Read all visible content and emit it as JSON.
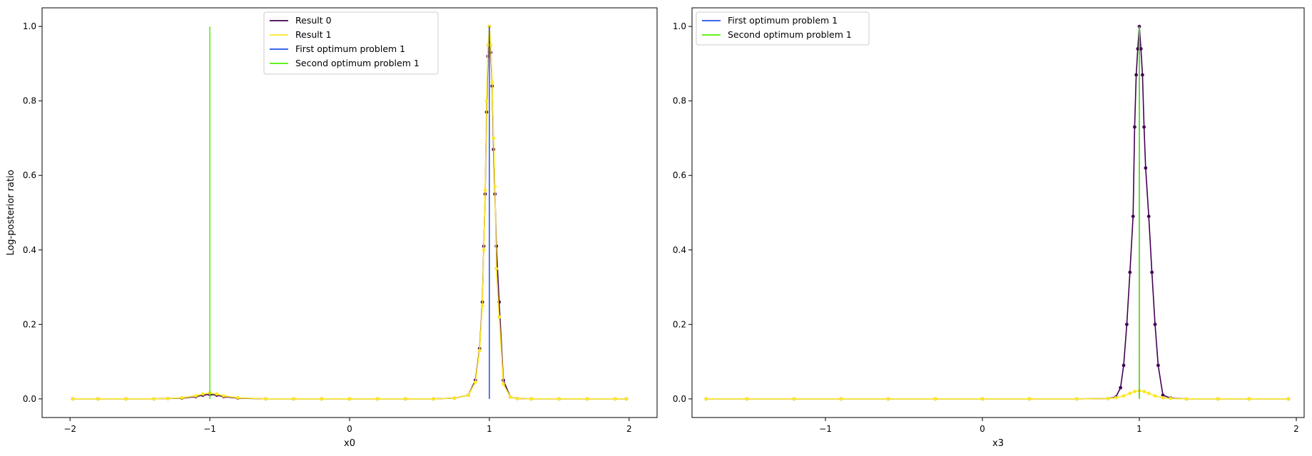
{
  "chart_data": [
    {
      "type": "line",
      "xlabel": "x0",
      "ylabel": "Log-posterior ratio",
      "xlim": [
        -2.2,
        2.2
      ],
      "ylim": [
        -0.05,
        1.05
      ],
      "xticks": [
        -2,
        -1,
        0,
        1,
        2
      ],
      "yticks": [
        0.0,
        0.2,
        0.4,
        0.6,
        0.8,
        1.0
      ],
      "xtick_labels": [
        "−2",
        "−1",
        "0",
        "1",
        "2"
      ],
      "ytick_labels": [
        "0.0",
        "0.2",
        "0.4",
        "0.6",
        "0.8",
        "1.0"
      ],
      "legend_position": "top-center",
      "legend": [
        "Result 0",
        "Result 1",
        "First optimum problem 1",
        "Second optimum problem 1"
      ],
      "grid": false,
      "series": [
        {
          "name": "Result 0",
          "color": "#440154",
          "marker": "dot",
          "x": [
            -1.98,
            -1.8,
            -1.6,
            -1.4,
            -1.3,
            -1.2,
            -1.1,
            -1.05,
            -1.0,
            -0.95,
            -0.9,
            -0.8,
            -0.6,
            -0.4,
            -0.2,
            0.0,
            0.2,
            0.4,
            0.6,
            0.75,
            0.85,
            0.9,
            0.93,
            0.95,
            0.96,
            0.97,
            0.98,
            0.99,
            1.0,
            1.01,
            1.02,
            1.03,
            1.04,
            1.05,
            1.07,
            1.1,
            1.15,
            1.2,
            1.3,
            1.5,
            1.7,
            1.9,
            1.98
          ],
          "y": [
            0.0,
            0.0,
            0.0,
            0.0,
            0.001,
            0.002,
            0.006,
            0.01,
            0.012,
            0.01,
            0.006,
            0.002,
            0.0,
            0.0,
            0.0,
            0.0,
            0.0,
            0.0,
            0.0,
            0.002,
            0.01,
            0.05,
            0.135,
            0.26,
            0.41,
            0.55,
            0.77,
            0.92,
            1.0,
            0.93,
            0.84,
            0.67,
            0.55,
            0.41,
            0.26,
            0.05,
            0.005,
            0.001,
            0.0,
            0.0,
            0.0,
            0.0,
            0.0
          ]
        },
        {
          "name": "Result 1",
          "color": "#fde725",
          "marker": "dot",
          "x": [
            -1.98,
            -1.8,
            -1.6,
            -1.4,
            -1.3,
            -1.2,
            -1.1,
            -1.05,
            -1.0,
            -0.95,
            -0.9,
            -0.8,
            -0.6,
            -0.4,
            -0.2,
            0.0,
            0.2,
            0.4,
            0.6,
            0.75,
            0.85,
            0.9,
            0.93,
            0.95,
            0.96,
            0.97,
            0.98,
            0.99,
            1.0,
            1.01,
            1.02,
            1.03,
            1.04,
            1.05,
            1.07,
            1.1,
            1.15,
            1.2,
            1.3,
            1.5,
            1.7,
            1.9,
            1.98
          ],
          "y": [
            0.0,
            0.0,
            0.0,
            0.0,
            0.001,
            0.003,
            0.008,
            0.013,
            0.016,
            0.013,
            0.008,
            0.003,
            0.0,
            0.0,
            0.0,
            0.0,
            0.0,
            0.0,
            0.0,
            0.002,
            0.01,
            0.045,
            0.13,
            0.25,
            0.4,
            0.56,
            0.8,
            0.95,
            1.0,
            0.95,
            0.85,
            0.7,
            0.57,
            0.35,
            0.22,
            0.04,
            0.005,
            0.001,
            0.0,
            0.0,
            0.0,
            0.0,
            0.0
          ]
        }
      ],
      "vlines": [
        {
          "name": "First optimum problem 1",
          "x": 1.0,
          "ymin": 0.0,
          "ymax": 1.0,
          "color": "#1f50e8"
        },
        {
          "name": "Second optimum problem 1",
          "x": -1.0,
          "ymin": 0.0,
          "ymax": 1.0,
          "color": "#4ef000"
        }
      ]
    },
    {
      "type": "line",
      "xlabel": "x3",
      "ylabel": "",
      "xlim": [
        -1.85,
        2.05
      ],
      "ylim": [
        -0.05,
        1.05
      ],
      "xticks": [
        -1,
        0,
        1,
        2
      ],
      "yticks": [
        0.0,
        0.2,
        0.4,
        0.6,
        0.8,
        1.0
      ],
      "xtick_labels": [
        "−1",
        "0",
        "1",
        "2"
      ],
      "ytick_labels": [
        "0.0",
        "0.2",
        "0.4",
        "0.6",
        "0.8",
        "1.0"
      ],
      "legend_position": "top-left",
      "legend": [
        "First optimum problem 1",
        "Second optimum problem 1"
      ],
      "grid": false,
      "series": [
        {
          "name": "",
          "color": "#440154",
          "marker": "dot",
          "x": [
            -1.76,
            -1.5,
            -1.2,
            -0.9,
            -0.6,
            -0.3,
            0.0,
            0.3,
            0.6,
            0.8,
            0.85,
            0.88,
            0.9,
            0.92,
            0.94,
            0.96,
            0.97,
            0.98,
            0.99,
            1.0,
            1.01,
            1.02,
            1.03,
            1.04,
            1.06,
            1.08,
            1.1,
            1.12,
            1.15,
            1.2,
            1.3,
            1.5,
            1.7,
            1.95
          ],
          "y": [
            0.0,
            0.0,
            0.0,
            0.0,
            0.0,
            0.0,
            0.0,
            0.0,
            0.0,
            0.001,
            0.005,
            0.03,
            0.09,
            0.2,
            0.34,
            0.49,
            0.73,
            0.87,
            0.94,
            1.0,
            0.94,
            0.87,
            0.73,
            0.62,
            0.49,
            0.34,
            0.2,
            0.09,
            0.01,
            0.002,
            0.0,
            0.0,
            0.0,
            0.0
          ]
        },
        {
          "name": "",
          "color": "#fde725",
          "marker": "dot",
          "x": [
            -1.76,
            -1.5,
            -1.2,
            -0.9,
            -0.6,
            -0.3,
            0.0,
            0.3,
            0.6,
            0.8,
            0.85,
            0.9,
            0.94,
            0.97,
            1.0,
            1.03,
            1.06,
            1.1,
            1.15,
            1.2,
            1.3,
            1.5,
            1.7,
            1.95
          ],
          "y": [
            0.0,
            0.0,
            0.0,
            0.0,
            0.0,
            0.0,
            0.0,
            0.0,
            0.0,
            0.001,
            0.003,
            0.008,
            0.015,
            0.02,
            0.022,
            0.02,
            0.015,
            0.008,
            0.003,
            0.001,
            0.0,
            0.0,
            0.0,
            0.0
          ]
        }
      ],
      "vlines": [
        {
          "name": "First optimum problem 1",
          "x": 1.0,
          "ymin": 0.0,
          "ymax": 1.0,
          "color": "#1f50e8"
        },
        {
          "name": "Second optimum problem 1",
          "x": 1.0,
          "ymin": 0.0,
          "ymax": 1.0,
          "color": "#4ef000"
        }
      ]
    }
  ]
}
